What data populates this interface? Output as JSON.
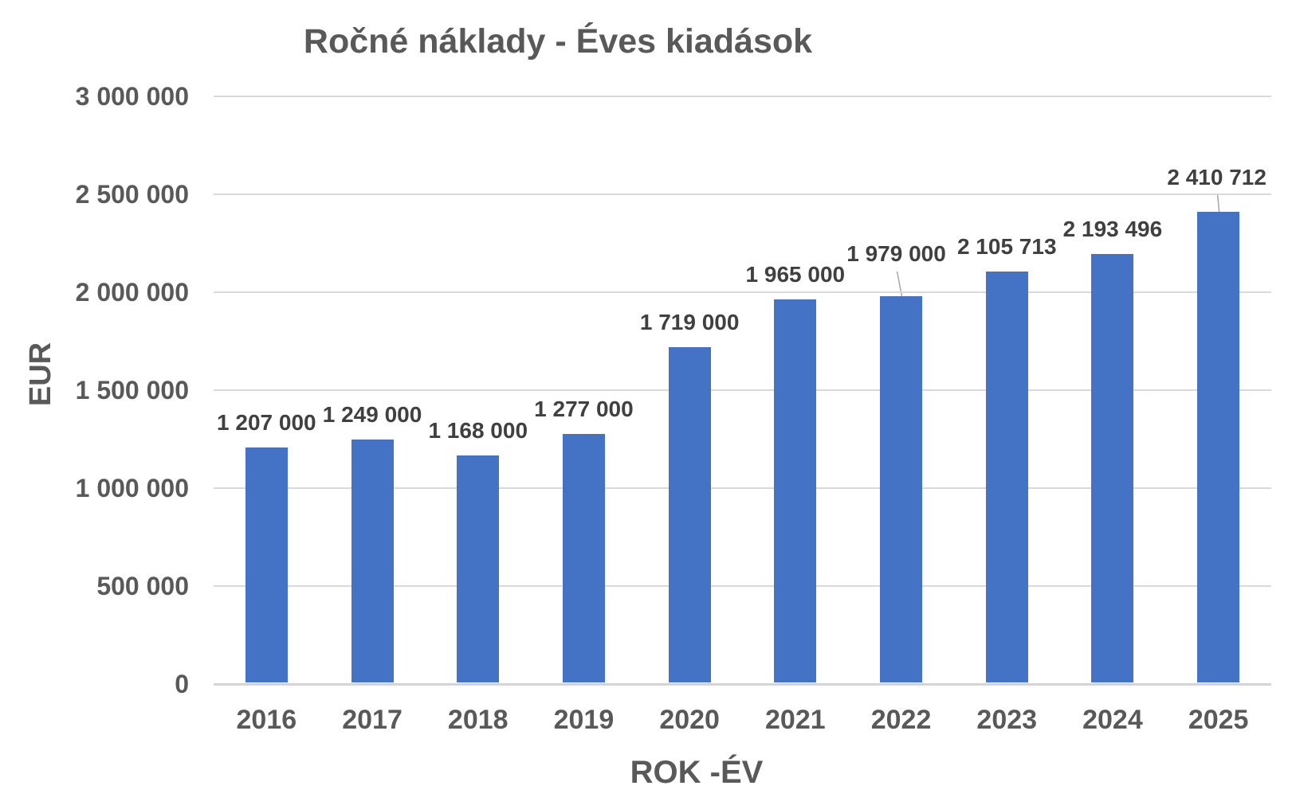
{
  "chart_data": {
    "type": "bar",
    "title": "Ročné náklady - Éves kiadások",
    "xlabel": "ROK -ÉV",
    "ylabel": "EUR",
    "categories": [
      "2016",
      "2017",
      "2018",
      "2019",
      "2020",
      "2021",
      "2022",
      "2023",
      "2024",
      "2025"
    ],
    "values": [
      1207000,
      1249000,
      1168000,
      1277000,
      1719000,
      1965000,
      1979000,
      2105713,
      2193496,
      2410712
    ],
    "data_labels": [
      "1 207 000",
      "1 249 000",
      "1 168 000",
      "1 277 000",
      "1 719 000",
      "1 965 000",
      "1 979 000",
      "2 105 713",
      "2 193 496",
      "2 410 712"
    ],
    "ytick_labels": [
      "0",
      "500 000",
      "1 000 000",
      "1 500 000",
      "2 000 000",
      "2 500 000",
      "3 000 000"
    ],
    "ylim": [
      0,
      3000000
    ],
    "ytick_step": 500000,
    "grid": true,
    "legend": "none",
    "callout_label_indices": [
      6,
      9
    ],
    "colors": {
      "bar": "#4472C4",
      "gridline": "#D9D9D9",
      "axis_line": "#D5D5D5",
      "axis_text": "#595959",
      "data_label_text": "#404040",
      "leader_line": "#A6A6A6",
      "background": "#FFFFFF"
    }
  }
}
